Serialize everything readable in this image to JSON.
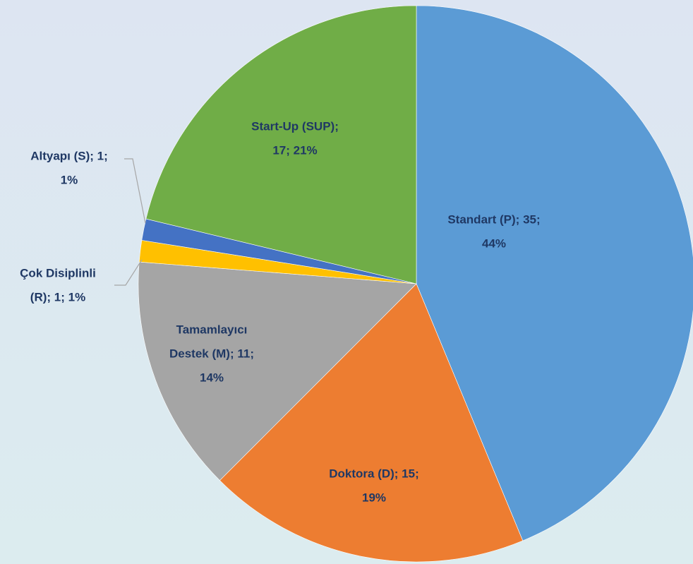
{
  "chart_data": {
    "type": "pie",
    "values": [
      35,
      15,
      11,
      1,
      1,
      17
    ],
    "value_labels": [
      [
        "Standart (P); 35;",
        "44%"
      ],
      [
        "Doktora (D); 15;",
        "19%"
      ],
      [
        "Tamamlayıcı",
        "Destek (M); 11;",
        "14%"
      ],
      [
        "Çok Disiplinli",
        "(R); 1; 1%"
      ],
      [
        "Altyapı (S); 1;",
        "1%"
      ],
      [
        "Start-Up (SUP);",
        "17; 21%"
      ]
    ],
    "colors": [
      "#5b9bd5",
      "#ed7d31",
      "#a5a5a5",
      "#ffc000",
      "#4472c4",
      "#70ad47"
    ]
  }
}
